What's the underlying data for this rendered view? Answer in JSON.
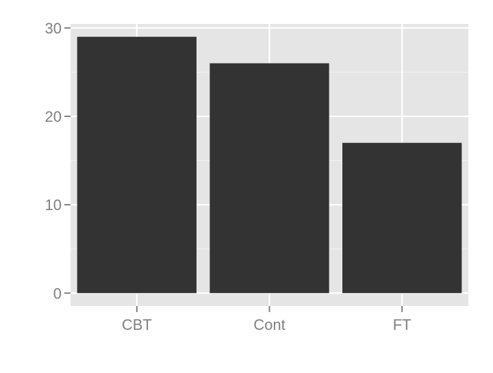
{
  "chart_data": {
    "type": "bar",
    "categories": [
      "CBT",
      "Cont",
      "FT"
    ],
    "values": [
      29,
      26,
      17
    ],
    "title": "",
    "xlabel": "",
    "ylabel": "",
    "ylim": [
      -1.45,
      30.45
    ],
    "y_ticks": [
      0,
      10,
      20,
      30
    ],
    "y_tick_labels": [
      "0",
      "10",
      "20",
      "30"
    ],
    "grid": true,
    "legend": "none",
    "colors": {
      "panel_background": "#E5E5E5",
      "grid_major": "#FFFFFF",
      "grid_minor": "#F2F2F2",
      "bar_fill": "#333333",
      "tick_text": "#7F7F7F",
      "tick_mark": "#7F7F7F"
    }
  }
}
